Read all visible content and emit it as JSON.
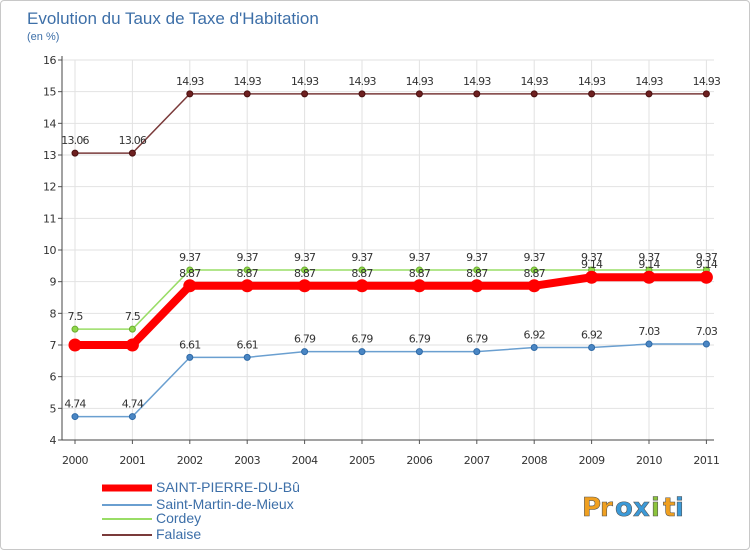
{
  "chart_data": {
    "type": "line",
    "title": "Evolution du Taux de Taxe d'Habitation",
    "subtitle": "(en %)",
    "x": [
      "2000",
      "2001",
      "2002",
      "2003",
      "2004",
      "2005",
      "2006",
      "2007",
      "2008",
      "2009",
      "2010",
      "2011"
    ],
    "ylim": [
      4,
      16
    ],
    "yticks": [
      4,
      5,
      6,
      7,
      8,
      9,
      10,
      11,
      12,
      13,
      14,
      15,
      16
    ],
    "grid": true,
    "series": [
      {
        "name": "SAINT-PIERRE-DU-Bû",
        "color": "#ff0000",
        "values": [
          7.0,
          7.0,
          8.87,
          8.87,
          8.87,
          8.87,
          8.87,
          8.87,
          8.87,
          9.14,
          9.14,
          9.14
        ],
        "labels": [
          "",
          "",
          "8.87",
          "8.87",
          "8.87",
          "8.87",
          "8.87",
          "8.87",
          "8.87",
          "9.14",
          "9.14",
          "9.14"
        ]
      },
      {
        "name": "Saint-Martin-de-Mieux",
        "color": "#6a9fd0",
        "values": [
          4.74,
          4.74,
          6.61,
          6.61,
          6.79,
          6.79,
          6.79,
          6.79,
          6.92,
          6.92,
          7.03,
          7.03
        ],
        "labels": [
          "4.74",
          "4.74",
          "6.61",
          "6.61",
          "6.79",
          "6.79",
          "6.79",
          "6.79",
          "6.92",
          "6.92",
          "7.03",
          "7.03"
        ]
      },
      {
        "name": "Cordey",
        "color": "#99dd66",
        "values": [
          7.5,
          7.5,
          9.37,
          9.37,
          9.37,
          9.37,
          9.37,
          9.37,
          9.37,
          9.37,
          9.37,
          9.37
        ],
        "labels": [
          "7.5",
          "7.5",
          "9.37",
          "9.37",
          "9.37",
          "9.37",
          "9.37",
          "9.37",
          "9.37",
          "9.37",
          "9.37",
          "9.37"
        ]
      },
      {
        "name": "Falaise",
        "color": "#7a3a3a",
        "values": [
          13.06,
          13.06,
          14.93,
          14.93,
          14.93,
          14.93,
          14.93,
          14.93,
          14.93,
          14.93,
          14.93,
          14.93
        ],
        "labels": [
          "13.06",
          "13.06",
          "14.93",
          "14.93",
          "14.93",
          "14.93",
          "14.93",
          "14.93",
          "14.93",
          "14.93",
          "14.93",
          "14.93"
        ]
      }
    ],
    "legend_position": "bottom-left"
  },
  "brand": {
    "letters": [
      "P",
      "r",
      "o",
      "x",
      "i",
      "t",
      "i"
    ],
    "colors": [
      "#f0a020",
      "#f0a020",
      "#3c9ad8",
      "#3c9ad8",
      "#8cc43c",
      "#f0a020",
      "#3c9ad8"
    ]
  }
}
